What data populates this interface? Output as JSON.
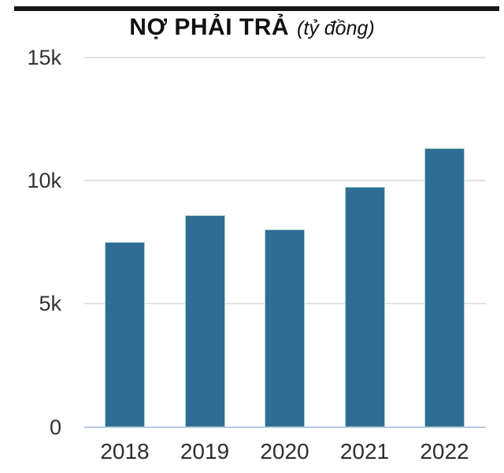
{
  "page": {
    "title_main": "NỢ PHẢI TRẢ",
    "title_unit": "(tỷ đồng)"
  },
  "colors": {
    "bar": "#2f6d94",
    "bar_border": "#a9d4cd",
    "gridline": "#e3e3e3",
    "zero_line": "#b5c8e3",
    "top_rule": "#161616",
    "title_text": "#111111",
    "label_text": "#333333"
  },
  "chart_data": {
    "type": "bar",
    "title": "NỢ PHẢI TRẢ (tỷ đồng)",
    "unit": "tỷ đồng",
    "categories": [
      "2018",
      "2019",
      "2020",
      "2021",
      "2022"
    ],
    "values": [
      7500,
      8600,
      8000,
      9750,
      11300
    ],
    "xlabel": "",
    "ylabel": "",
    "ylim": [
      0,
      15000
    ],
    "y_ticks": [
      {
        "value": 0,
        "label": "0"
      },
      {
        "value": 5000,
        "label": "5k"
      },
      {
        "value": 10000,
        "label": "10k"
      },
      {
        "value": 15000,
        "label": "15k"
      }
    ],
    "grid": "horizontal",
    "legend": "none"
  }
}
